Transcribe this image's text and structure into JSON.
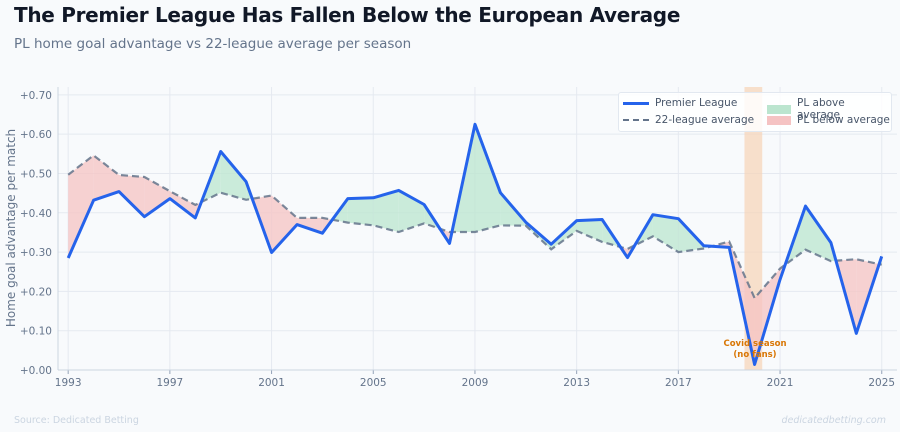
{
  "header": {
    "title": "The Premier League Has Fallen Below the European Average",
    "subtitle": "PL home goal advantage vs 22-league average per season"
  },
  "footer": {
    "source": "Source: Dedicated Betting",
    "brand": "dedicatedbetting.com"
  },
  "legend": {
    "pl": "Premier League",
    "avg": "22-league average",
    "above": "PL above average",
    "below": "PL below average"
  },
  "colors": {
    "pl": "#2563eb",
    "avg": "#64748b",
    "above": "#bbe5cf",
    "below": "#f5c3c3",
    "covid": "#f6d3b6",
    "covid_text": "#d97706"
  },
  "chart_data": {
    "type": "line",
    "title": "The Premier League Has Fallen Below the European Average",
    "subtitle": "PL home goal advantage vs 22-league average per season",
    "xlabel": "",
    "ylabel": "Home goal advantage per match",
    "x": [
      1993,
      1994,
      1995,
      1996,
      1997,
      1998,
      1999,
      2000,
      2001,
      2002,
      2003,
      2004,
      2005,
      2006,
      2007,
      2008,
      2009,
      2010,
      2011,
      2012,
      2013,
      2014,
      2015,
      2016,
      2017,
      2018,
      2019,
      2020,
      2021,
      2022,
      2023,
      2024,
      2025
    ],
    "series": [
      {
        "name": "Premier League",
        "values": [
          0.285,
          0.432,
          0.454,
          0.39,
          0.436,
          0.387,
          0.556,
          0.479,
          0.299,
          0.37,
          0.348,
          0.436,
          0.438,
          0.457,
          0.421,
          0.322,
          0.625,
          0.451,
          0.376,
          0.32,
          0.38,
          0.383,
          0.286,
          0.395,
          0.385,
          0.316,
          0.312,
          0.014,
          0.23,
          0.417,
          0.324,
          0.093,
          0.289
        ]
      },
      {
        "name": "22-league average",
        "values": [
          0.497,
          0.546,
          0.496,
          0.491,
          0.455,
          0.42,
          0.451,
          0.433,
          0.444,
          0.387,
          0.387,
          0.375,
          0.368,
          0.351,
          0.373,
          0.351,
          0.351,
          0.368,
          0.367,
          0.307,
          0.354,
          0.326,
          0.308,
          0.34,
          0.3,
          0.309,
          0.327,
          0.183,
          0.258,
          0.306,
          0.277,
          0.282,
          0.268
        ]
      }
    ],
    "xticks": [
      "1993",
      "1997",
      "2001",
      "2005",
      "2009",
      "2013",
      "2017",
      "2021",
      "2025"
    ],
    "yticks": [
      "+0.00",
      "+0.10",
      "+0.20",
      "+0.30",
      "+0.40",
      "+0.50",
      "+0.60",
      "+0.70"
    ],
    "ylim": [
      0,
      0.72
    ],
    "xlim": [
      1992.6,
      2025.6
    ],
    "grid": true,
    "legend_position": "top-right",
    "annotation": {
      "text_line1": "Covid season",
      "text_line2": "(no fans)",
      "span": [
        2019.6,
        2020.3
      ]
    }
  }
}
